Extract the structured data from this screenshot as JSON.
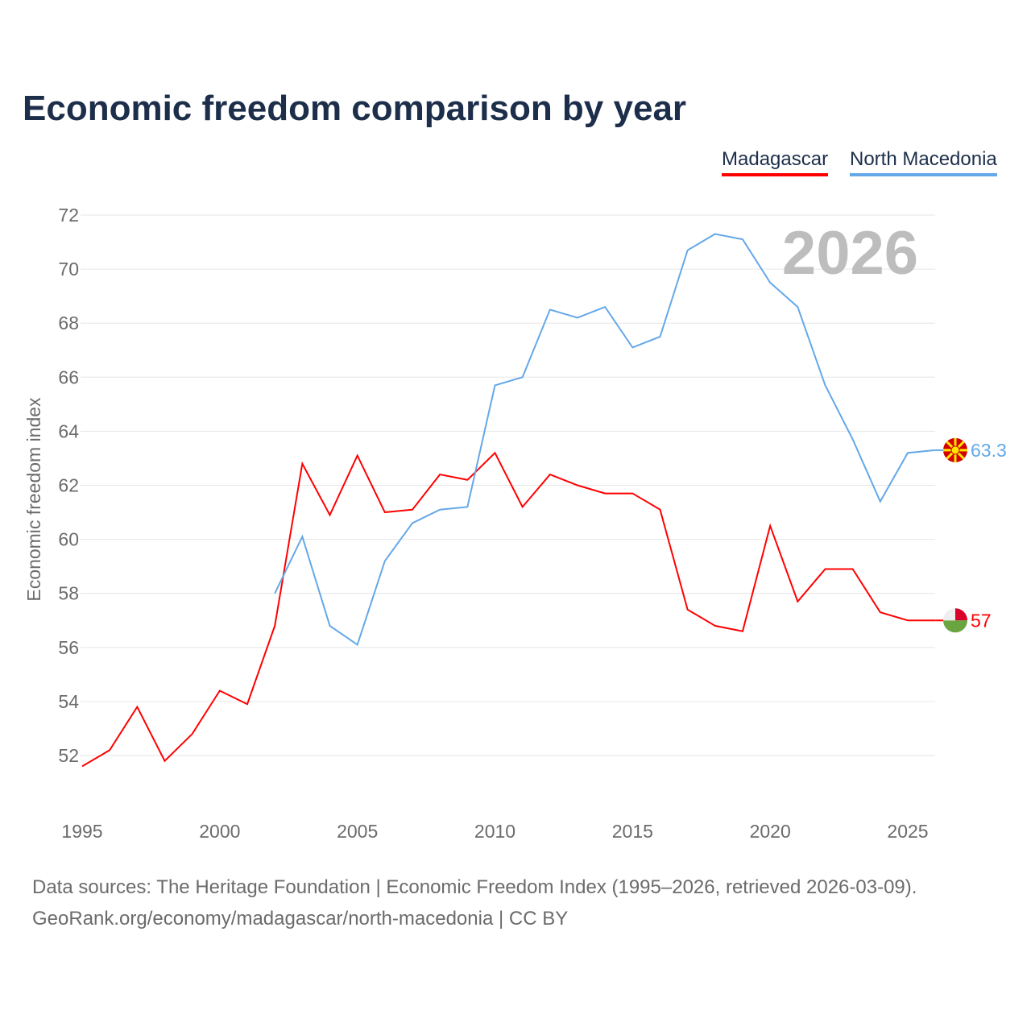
{
  "chart_data": {
    "type": "line",
    "title": "Economic freedom comparison by year",
    "xlabel": "",
    "ylabel": "Economic freedom index",
    "xlim": [
      1995,
      2026
    ],
    "ylim": [
      50.8,
      72
    ],
    "yticks": [
      52,
      54,
      56,
      58,
      60,
      62,
      64,
      66,
      68,
      70,
      72
    ],
    "xticks": [
      1995,
      2000,
      2005,
      2010,
      2015,
      2020,
      2025
    ],
    "grid": true,
    "legend_position": "top-right",
    "year_watermark": "2026",
    "series": [
      {
        "name": "Madagascar",
        "color": "#ff0000",
        "end_label": "57",
        "x": [
          1995,
          1996,
          1997,
          1998,
          1999,
          2000,
          2001,
          2002,
          2003,
          2004,
          2005,
          2006,
          2007,
          2008,
          2009,
          2010,
          2011,
          2012,
          2013,
          2014,
          2015,
          2016,
          2017,
          2018,
          2019,
          2020,
          2021,
          2022,
          2023,
          2024,
          2025,
          2026
        ],
        "values": [
          51.6,
          52.2,
          53.8,
          51.8,
          52.8,
          54.4,
          53.9,
          56.8,
          62.8,
          60.9,
          63.1,
          61.0,
          61.1,
          62.4,
          62.2,
          63.2,
          61.2,
          62.4,
          62.0,
          61.7,
          61.7,
          61.1,
          57.4,
          56.8,
          56.6,
          60.5,
          57.7,
          58.9,
          58.9,
          57.3,
          57.0,
          57.0
        ]
      },
      {
        "name": "North Macedonia",
        "color": "#64a8e8",
        "end_label": "63.3",
        "x": [
          2002,
          2003,
          2004,
          2005,
          2006,
          2007,
          2008,
          2009,
          2010,
          2011,
          2012,
          2013,
          2014,
          2015,
          2016,
          2017,
          2018,
          2019,
          2020,
          2021,
          2022,
          2023,
          2024,
          2025,
          2026
        ],
        "values": [
          58.0,
          60.1,
          56.8,
          56.1,
          59.2,
          60.6,
          61.1,
          61.2,
          65.7,
          66.0,
          68.5,
          68.2,
          68.6,
          67.1,
          67.5,
          70.7,
          71.3,
          71.1,
          69.5,
          68.6,
          65.7,
          63.7,
          61.4,
          63.2,
          63.3
        ]
      }
    ]
  },
  "footer": {
    "line1": "Data sources: The Heritage Foundation | Economic Freedom Index (1995–2026, retrieved 2026-03-09).",
    "line2": "GeoRank.org/economy/madagascar/north-macedonia | CC BY"
  }
}
